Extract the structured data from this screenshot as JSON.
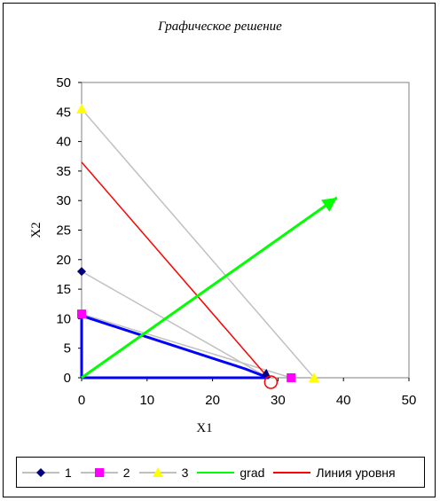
{
  "chart_data": {
    "type": "line",
    "title": "Графическое решение",
    "xlabel": "X1",
    "ylabel": "X2",
    "xlim": [
      0,
      50
    ],
    "ylim": [
      0,
      50
    ],
    "xticks": [
      "0",
      "10",
      "20",
      "30",
      "40",
      "50"
    ],
    "yticks": [
      "0",
      "5",
      "10",
      "15",
      "20",
      "25",
      "30",
      "35",
      "40",
      "45",
      "50"
    ],
    "grid": false,
    "legend_position": "bottom",
    "series": [
      {
        "name": "1",
        "color": "#c0c0c0",
        "marker": "diamond",
        "marker_color": "#000080",
        "x": [
          0,
          28.5
        ],
        "y": [
          18,
          0
        ]
      },
      {
        "name": "2",
        "color": "#c0c0c0",
        "marker": "square",
        "marker_color": "#ff00ff",
        "x": [
          0,
          32
        ],
        "y": [
          10.8,
          0
        ]
      },
      {
        "name": "3",
        "color": "#c0c0c0",
        "marker": "triangle",
        "marker_color": "#ffff00",
        "x": [
          0,
          35.5
        ],
        "y": [
          45.5,
          0
        ]
      },
      {
        "name": "grad",
        "color": "#00ff00",
        "marker": "arrow",
        "x": [
          0,
          39
        ],
        "y": [
          0,
          30.5
        ]
      },
      {
        "name": "Линия уровня",
        "color": "#ff0000",
        "marker": "none",
        "x": [
          0,
          28.5
        ],
        "y": [
          36.5,
          0
        ]
      }
    ],
    "feasible_region": {
      "color": "#0000ff",
      "x": [
        0,
        0,
        25,
        28.5,
        0
      ],
      "y": [
        0,
        10.5,
        1.5,
        0,
        0
      ]
    },
    "optimum_marker": {
      "color": "#ff0000",
      "x": 28.5,
      "y": 0
    }
  },
  "legend": {
    "items": [
      "1",
      "2",
      "3",
      "grad",
      "Линия уровня"
    ]
  }
}
